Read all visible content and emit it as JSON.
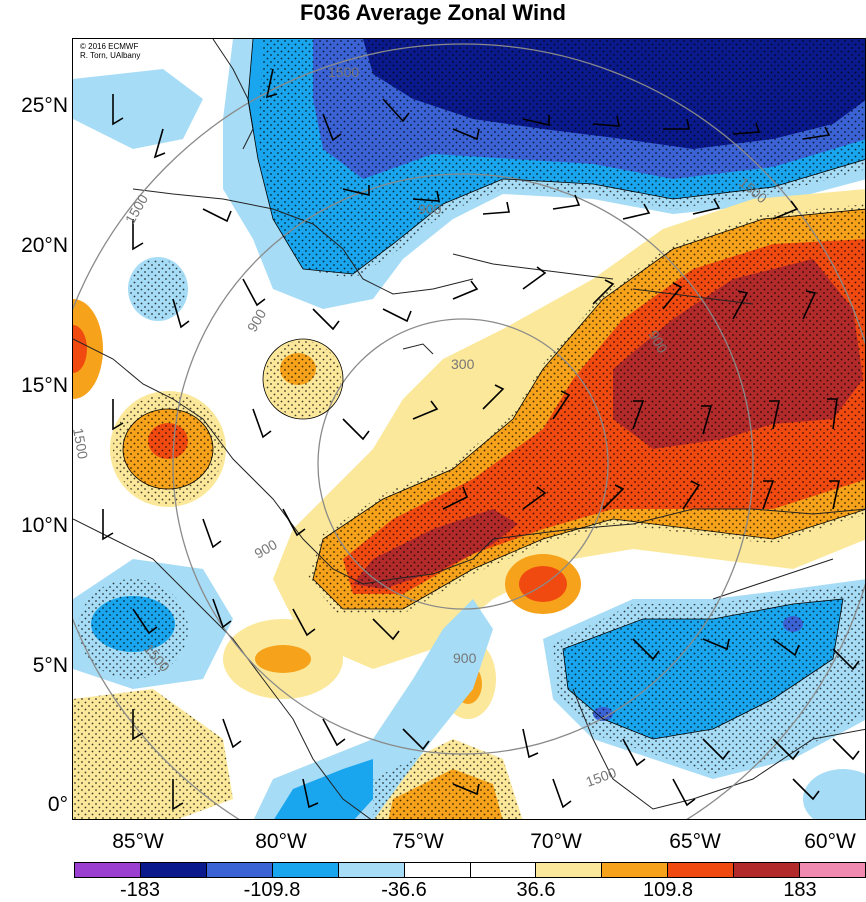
{
  "title": "F036 Average Zonal Wind",
  "credit": {
    "line1": "© 2016 ECMWF",
    "line2": "R. Torn, UAlbany"
  },
  "lat_labels": [
    "25°N",
    "20°N",
    "15°N",
    "10°N",
    "5°N",
    "0°"
  ],
  "lon_labels": [
    "85°W",
    "80°W",
    "75°W",
    "70°W",
    "65°W",
    "60°W"
  ],
  "contour_labels": [
    "300",
    "900",
    "900",
    "900",
    "900",
    "900",
    "1500",
    "1500",
    "1500",
    "1500",
    "1500",
    "1500"
  ],
  "colorbar": {
    "colors": [
      "#9b3fd1",
      "#0a1a8c",
      "#3b63d6",
      "#1aa6ee",
      "#a6dcf5",
      "#ffffff",
      "#ffffff",
      "#fbe89a",
      "#f6a21a",
      "#f04a10",
      "#b22a2a",
      "#f08ab0"
    ],
    "labels": [
      "-183",
      "-109.8",
      "-36.6",
      "36.6",
      "109.8",
      "183"
    ]
  }
}
